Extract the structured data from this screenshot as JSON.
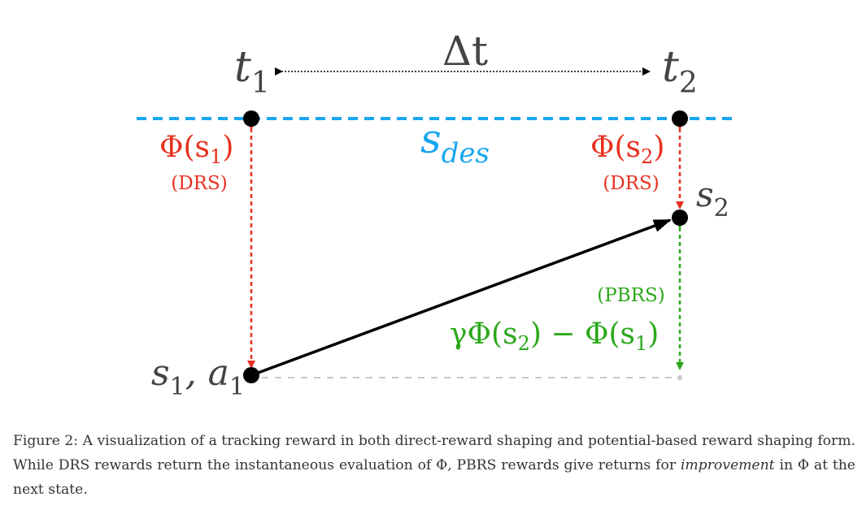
{
  "figure": {
    "delta_t": "Δt",
    "t1_base": "t",
    "t1_sub": "1",
    "t2_base": "t",
    "t2_sub": "2",
    "sdes_base": "s",
    "sdes_sub": "des",
    "phi_s1_a": "Φ(s",
    "phi_s1_sub": "1",
    "phi_s1_b": ")",
    "phi_s2_a": "Φ(s",
    "phi_s2_sub": "2",
    "phi_s2_b": ")",
    "drs_left": "(DRS)",
    "drs_right": "(DRS)",
    "s2_base": "s",
    "s2_sub": "2",
    "pbrs": "(PBRS)",
    "pbrs_f1": "γΦ(s",
    "pbrs_sub1": "2",
    "pbrs_f2": ") − Φ(s",
    "pbrs_sub2": "1",
    "pbrs_f3": ")",
    "s1a1_s": "s",
    "s1a1_sub1": "1",
    "s1a1_mid": ", a",
    "s1a1_sub2": "1",
    "colors": {
      "red": "#e8301f",
      "blue": "#1aa6f0",
      "green": "#2aa81a",
      "black": "#000000"
    }
  },
  "caption": {
    "part1": "Figure 2: A visualization of a tracking reward in both direct-reward shaping and potential-based reward shaping form. While DRS rewards return the instantaneous evaluation of Φ, PBRS rewards give returns for ",
    "emph": "improvement",
    "part2": " in Φ at the next state."
  }
}
